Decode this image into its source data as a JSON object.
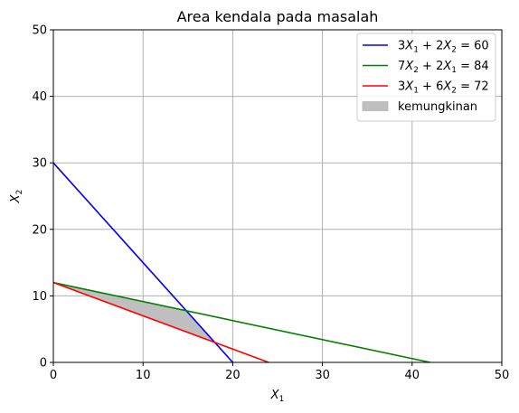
{
  "chart_data": {
    "type": "line",
    "title": "Area kendala pada masalah",
    "xlabel": {
      "base": "X",
      "sub": "1"
    },
    "ylabel": {
      "base": "X",
      "sub": "2"
    },
    "xlim": [
      0,
      50
    ],
    "ylim": [
      0,
      50
    ],
    "xticks": [
      0,
      10,
      20,
      30,
      40,
      50
    ],
    "yticks": [
      0,
      10,
      20,
      30,
      40,
      50
    ],
    "grid": true,
    "legend_position": "top-right",
    "series": [
      {
        "name": "3X_1 + 2X_2 = 60",
        "label_parts": [
          [
            "t",
            "3"
          ],
          [
            "i",
            "X"
          ],
          [
            "s",
            "1"
          ],
          [
            "t",
            " + 2"
          ],
          [
            "i",
            "X"
          ],
          [
            "s",
            "2"
          ],
          [
            "t",
            " = 60"
          ]
        ],
        "color": "#0000ff",
        "points": [
          [
            0,
            30
          ],
          [
            20,
            0
          ]
        ]
      },
      {
        "name": "7X_2 + 2X_1 = 84",
        "label_parts": [
          [
            "t",
            "7"
          ],
          [
            "i",
            "X"
          ],
          [
            "s",
            "2"
          ],
          [
            "t",
            " + 2"
          ],
          [
            "i",
            "X"
          ],
          [
            "s",
            "1"
          ],
          [
            "t",
            " = 84"
          ]
        ],
        "color": "#008000",
        "points": [
          [
            0,
            12
          ],
          [
            42,
            0
          ]
        ]
      },
      {
        "name": "3X_1 + 6X_2 = 72",
        "label_parts": [
          [
            "t",
            "3"
          ],
          [
            "i",
            "X"
          ],
          [
            "s",
            "1"
          ],
          [
            "t",
            " + 6"
          ],
          [
            "i",
            "X"
          ],
          [
            "s",
            "2"
          ],
          [
            "t",
            " = 72"
          ]
        ],
        "color": "#ff0000",
        "points": [
          [
            0,
            12
          ],
          [
            24,
            0
          ]
        ]
      }
    ],
    "fill": {
      "name": "kemungkinan",
      "color": "#bfbfbf",
      "polygon": [
        [
          0,
          12
        ],
        [
          14.7,
          7.8
        ],
        [
          18,
          3
        ],
        [
          0,
          12
        ]
      ]
    }
  }
}
